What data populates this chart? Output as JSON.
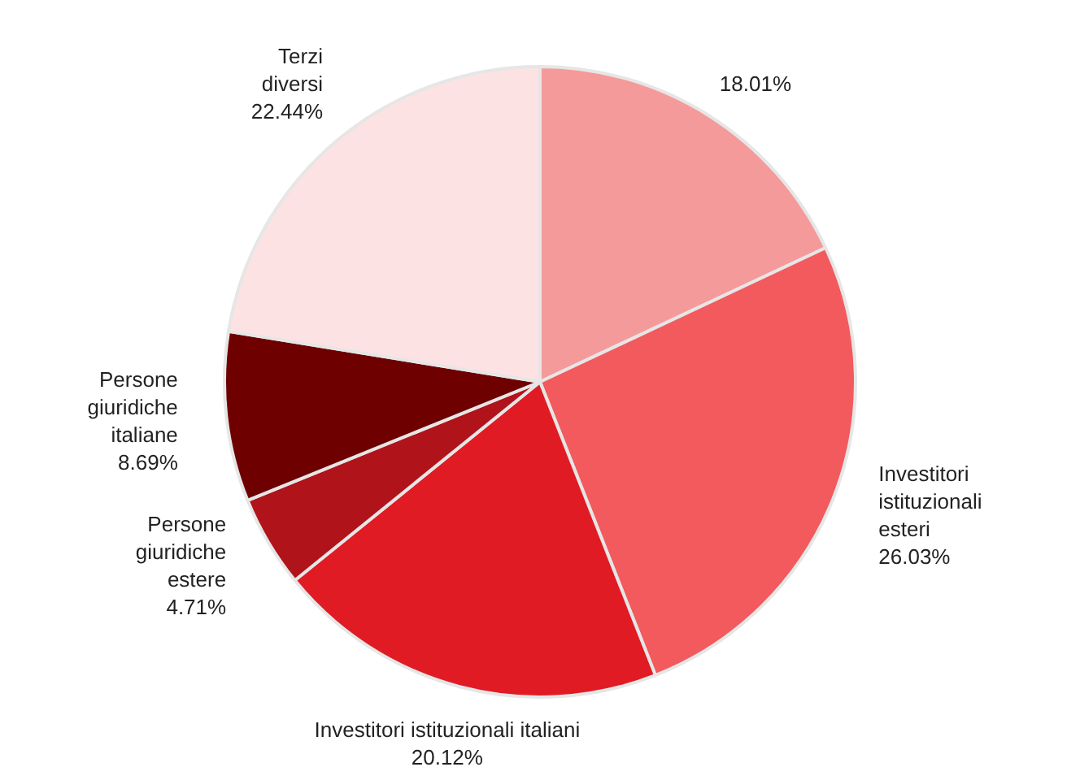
{
  "chart_data": {
    "type": "pie",
    "categories": [
      null,
      "Investitori istituzionali esteri",
      "Investitori istituzionali italiani",
      "Persone giuridiche estere",
      "Persone giuridiche italiane",
      "Terzi diversi"
    ],
    "values": [
      18.01,
      26.03,
      20.12,
      4.71,
      8.69,
      22.44
    ],
    "colors": [
      "#f59a9a",
      "#f25a5e",
      "#e01b24",
      "#b0141a",
      "#6e0000",
      "#fde2e3"
    ],
    "value_labels": [
      "18.01%",
      "26.03%",
      "20.12%",
      "4.71%",
      "8.69%",
      "22.44%"
    ],
    "legend": false
  }
}
